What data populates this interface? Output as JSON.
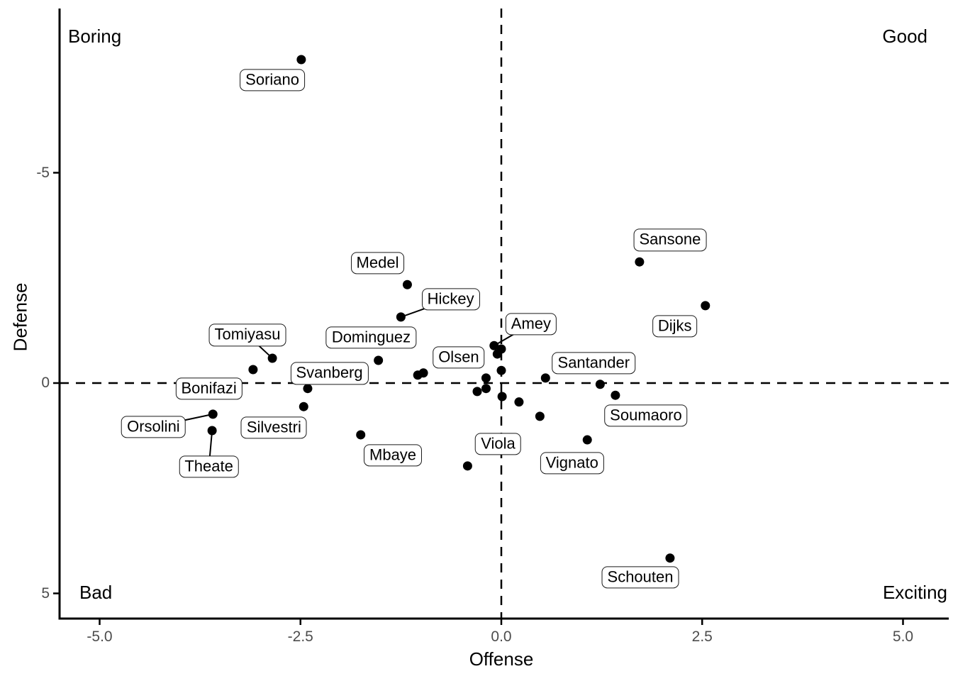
{
  "chart_data": {
    "type": "scatter",
    "title": "",
    "xlabel": "Offense",
    "ylabel": "Defense",
    "x_ticks": [
      {
        "label": "-5.0",
        "value": -5.0
      },
      {
        "label": "-2.5",
        "value": -2.5
      },
      {
        "label": "0.0",
        "value": 0.0
      },
      {
        "label": "2.5",
        "value": 2.5
      },
      {
        "label": "5.0",
        "value": 5.0
      }
    ],
    "y_ticks": [
      {
        "label": "-5",
        "value": -5
      },
      {
        "label": "0",
        "value": 0
      },
      {
        "label": "5",
        "value": 5
      }
    ],
    "xlim": [
      -5.5,
      5.5
    ],
    "ylim": [
      -8.9,
      5.6
    ],
    "y_axis_reversed": true,
    "grid": false,
    "reference_lines": {
      "vertical_x": 0,
      "horizontal_y": 0,
      "style": "dashed"
    },
    "annotations": {
      "top_left": "Boring",
      "top_right": "Good",
      "bottom_left": "Bad",
      "bottom_right": "Exciting"
    },
    "point_color": "#000000",
    "points": [
      {
        "name": "Soriano",
        "x": -2.49,
        "y": -7.69,
        "label_x": -2.85,
        "label_y": -7.2,
        "leader": false
      },
      {
        "name": "Tomiyasu",
        "x": -2.85,
        "y": -0.59,
        "label_x": -3.16,
        "label_y": -1.14,
        "leader": true
      },
      {
        "name": "Bonifazi",
        "x": -3.09,
        "y": -0.32,
        "label_x": -3.64,
        "label_y": 0.13,
        "leader": false
      },
      {
        "name": "Orsolini",
        "x": -3.59,
        "y": 0.74,
        "label_x": -4.33,
        "label_y": 1.04,
        "leader": true
      },
      {
        "name": "Theate",
        "x": -3.6,
        "y": 1.13,
        "label_x": -3.64,
        "label_y": 1.99,
        "leader": true
      },
      {
        "name": "Silvestri",
        "x": -2.46,
        "y": 0.56,
        "label_x": -2.83,
        "label_y": 1.06,
        "leader": false
      },
      {
        "name": "Svanberg",
        "x": -2.41,
        "y": 0.13,
        "label_x": -2.14,
        "label_y": -0.23,
        "leader": false
      },
      {
        "name": "Medel",
        "x": -1.17,
        "y": -2.34,
        "label_x": -1.54,
        "label_y": -2.85,
        "leader": false
      },
      {
        "name": "Hickey",
        "x": -1.25,
        "y": -1.57,
        "label_x": -0.63,
        "label_y": -1.99,
        "leader": true
      },
      {
        "name": "Dominguez",
        "x": -1.53,
        "y": -0.54,
        "label_x": -1.62,
        "label_y": -1.08,
        "leader": false
      },
      {
        "name": "Olsen",
        "x": -0.19,
        "y": -0.12,
        "label_x": -0.53,
        "label_y": -0.61,
        "leader": false
      },
      {
        "name": "Amey",
        "x": -0.09,
        "y": -0.89,
        "label_x": 0.37,
        "label_y": -1.4,
        "leader": true
      },
      {
        "name": "Santander",
        "x": 0.55,
        "y": -0.12,
        "label_x": 1.15,
        "label_y": -0.47,
        "leader": false
      },
      {
        "name": "Soumaoro",
        "x": 1.42,
        "y": 0.29,
        "label_x": 1.8,
        "label_y": 0.77,
        "leader": false
      },
      {
        "name": "Sansone",
        "x": 1.72,
        "y": -2.88,
        "label_x": 2.1,
        "label_y": -3.4,
        "leader": false
      },
      {
        "name": "Dijks",
        "x": 2.54,
        "y": -1.84,
        "label_x": 2.16,
        "label_y": -1.35,
        "leader": false
      },
      {
        "name": "Viola",
        "x": -0.42,
        "y": 1.97,
        "label_x": -0.04,
        "label_y": 1.45,
        "leader": false
      },
      {
        "name": "Vignato",
        "x": 1.07,
        "y": 1.35,
        "label_x": 0.88,
        "label_y": 1.9,
        "leader": false
      },
      {
        "name": "Mbaye",
        "x": -1.75,
        "y": 1.23,
        "label_x": -1.35,
        "label_y": 1.72,
        "leader": false
      },
      {
        "name": "Schouten",
        "x": 2.1,
        "y": 4.16,
        "label_x": 1.73,
        "label_y": 4.62,
        "leader": false
      },
      {
        "name": null,
        "x": -1.04,
        "y": -0.19
      },
      {
        "name": null,
        "x": -0.97,
        "y": -0.24
      },
      {
        "name": null,
        "x": 0.0,
        "y": -0.81
      },
      {
        "name": null,
        "x": -0.05,
        "y": -0.69
      },
      {
        "name": null,
        "x": 0.0,
        "y": -0.3
      },
      {
        "name": null,
        "x": -0.19,
        "y": 0.13
      },
      {
        "name": null,
        "x": -0.3,
        "y": 0.2
      },
      {
        "name": null,
        "x": 0.01,
        "y": 0.32
      },
      {
        "name": null,
        "x": 0.22,
        "y": 0.45
      },
      {
        "name": null,
        "x": 0.48,
        "y": 0.79
      },
      {
        "name": null,
        "x": 1.23,
        "y": 0.03
      }
    ]
  }
}
